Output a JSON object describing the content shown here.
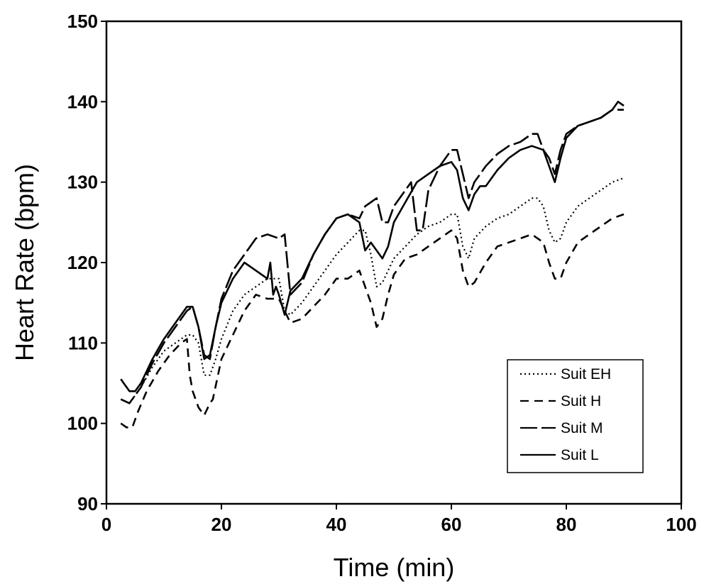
{
  "chart_data": {
    "type": "line",
    "title": "",
    "xlabel": "Time (min)",
    "ylabel": "Heart Rate (bpm)",
    "xlim": [
      0,
      100
    ],
    "ylim": [
      90,
      150
    ],
    "xticks": [
      0,
      20,
      40,
      60,
      80,
      100
    ],
    "yticks": [
      90,
      100,
      110,
      120,
      130,
      140,
      150
    ],
    "grid": false,
    "legend_position": "bottom-right",
    "series": [
      {
        "name": "Suit EH",
        "dash": "dotted",
        "x": [
          2.5,
          4,
          6,
          8,
          10,
          12,
          14,
          15,
          16,
          17,
          18,
          19,
          20,
          22,
          24,
          26,
          28,
          30,
          31,
          32,
          34,
          36,
          38,
          40,
          42,
          44,
          45,
          46,
          47,
          48,
          49,
          50,
          52,
          54,
          56,
          58,
          60,
          61,
          62,
          63,
          64,
          66,
          68,
          70,
          72,
          74,
          75,
          76,
          77,
          78,
          79,
          80,
          82,
          84,
          86,
          88,
          90
        ],
        "values": [
          103,
          102.5,
          104.5,
          107,
          109,
          110,
          111,
          111,
          110,
          106,
          106,
          108,
          110.5,
          114,
          116,
          117,
          118,
          118,
          114,
          113.5,
          115,
          117,
          119,
          121,
          122.5,
          124,
          124,
          121,
          117,
          117.5,
          119,
          120.5,
          122,
          123.5,
          124.5,
          125,
          126,
          126,
          122,
          120.5,
          123,
          124.5,
          125.5,
          126,
          127,
          128,
          128,
          127,
          124,
          122.5,
          123,
          125,
          127,
          128,
          129,
          130,
          130.5
        ]
      },
      {
        "name": "Suit H",
        "dash": "dashed",
        "x": [
          2.5,
          3.5,
          4.5,
          5.5,
          7,
          9,
          11,
          13,
          14,
          14.5,
          15,
          16,
          17,
          18,
          18.5,
          20,
          22,
          24,
          26,
          28,
          30,
          31,
          32,
          34,
          36,
          38,
          40,
          42,
          44,
          46,
          47,
          48,
          49,
          50,
          52,
          54,
          56,
          58,
          60,
          61,
          62,
          63,
          64,
          66,
          68,
          70,
          72,
          74,
          76,
          77,
          78,
          79,
          80,
          82,
          84,
          86,
          88,
          90
        ],
        "values": [
          100,
          99.5,
          99.5,
          101.5,
          104,
          106.5,
          108.5,
          110,
          110.5,
          106,
          104,
          102,
          101,
          102.5,
          103,
          108,
          111,
          114,
          116,
          115.5,
          115.5,
          114,
          112.5,
          113,
          114.5,
          116,
          118,
          118,
          119,
          115,
          112,
          113,
          116,
          118.5,
          120.5,
          121,
          122,
          123,
          124,
          123,
          119,
          117,
          117.5,
          120,
          122,
          122.5,
          123,
          123.5,
          122.5,
          120,
          118,
          118,
          120,
          122.5,
          123.5,
          124.5,
          125.5,
          126
        ]
      },
      {
        "name": "Suit M",
        "dash": "long-dash",
        "x": [
          2.5,
          4,
          6,
          8,
          10,
          12,
          14,
          15,
          16,
          17,
          18,
          19,
          20,
          22,
          24,
          26,
          28,
          30,
          31,
          32,
          34,
          36,
          38,
          40,
          42,
          44,
          45,
          46,
          47,
          48,
          49,
          50,
          52,
          53,
          54,
          55,
          56,
          58,
          60,
          61,
          62,
          63,
          64,
          66,
          68,
          70,
          72,
          74,
          75,
          76,
          77,
          78,
          79,
          80,
          82,
          84,
          86,
          88,
          90
        ],
        "values": [
          103,
          102.5,
          104.5,
          107.5,
          110,
          112,
          114,
          114.5,
          112,
          108.5,
          108,
          112,
          115.5,
          119,
          121,
          123,
          123.5,
          123,
          123.5,
          116,
          117.5,
          121,
          123.5,
          125.5,
          126,
          125.5,
          127,
          127.5,
          128,
          125,
          125,
          127,
          129,
          130,
          124,
          124,
          129,
          132,
          134,
          134,
          131,
          128,
          130,
          132,
          133.5,
          134.5,
          135,
          136,
          136,
          134,
          133,
          131,
          134,
          136,
          137,
          137.5,
          138,
          139,
          139
        ]
      },
      {
        "name": "Suit L",
        "dash": "solid",
        "x": [
          2.5,
          3,
          4,
          5,
          6,
          7,
          8,
          10,
          12,
          14,
          15,
          16,
          17,
          18,
          19,
          20,
          22,
          24,
          26,
          27,
          28,
          28.5,
          29,
          29.5,
          30,
          31,
          32,
          34,
          36,
          38,
          40,
          42,
          44,
          45,
          46,
          47,
          48,
          49,
          50,
          52,
          54,
          56,
          58,
          60,
          61,
          62,
          63,
          64,
          65,
          66,
          68,
          70,
          72,
          74,
          76,
          77,
          78,
          79,
          80,
          82,
          84,
          86,
          88,
          89,
          90
        ],
        "values": [
          105.5,
          105,
          104,
          104,
          105,
          106.5,
          108,
          110.5,
          112.5,
          114.5,
          114.5,
          112,
          108,
          108.5,
          112,
          115,
          118,
          120,
          119,
          118.5,
          118,
          120,
          116,
          117,
          116,
          113.5,
          116.5,
          118,
          121,
          123.5,
          125.5,
          126,
          125,
          121.5,
          122.5,
          121.5,
          120.5,
          122,
          125,
          127.5,
          130,
          131,
          132,
          132.5,
          131.5,
          128,
          126.5,
          128.5,
          129.5,
          129.5,
          131.5,
          133,
          134,
          134.5,
          134,
          132,
          130,
          133,
          135.5,
          137,
          137.5,
          138,
          139,
          140,
          139.5
        ]
      }
    ]
  }
}
